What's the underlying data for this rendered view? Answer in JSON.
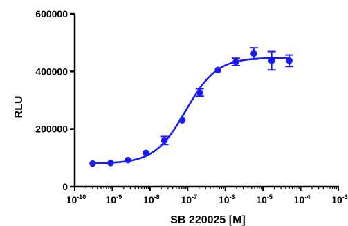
{
  "chart_data": {
    "type": "scatter",
    "title": "",
    "xlabel": "SB 220025 [M]",
    "ylabel": "RLU",
    "x_scale": "log",
    "xlim": [
      1e-10,
      0.001
    ],
    "ylim": [
      0,
      600000
    ],
    "x_ticks": [
      {
        "value": 1e-10,
        "base": "10",
        "exp": "-10"
      },
      {
        "value": 1e-09,
        "base": "10",
        "exp": "-9"
      },
      {
        "value": 1e-08,
        "base": "10",
        "exp": "-8"
      },
      {
        "value": 1e-07,
        "base": "10",
        "exp": "-7"
      },
      {
        "value": 1e-06,
        "base": "10",
        "exp": "-6"
      },
      {
        "value": 1e-05,
        "base": "10",
        "exp": "-5"
      },
      {
        "value": 0.0001,
        "base": "10",
        "exp": "-4"
      },
      {
        "value": 0.001,
        "base": "10",
        "exp": "-3"
      }
    ],
    "y_ticks": [
      {
        "value": 0,
        "label": "0"
      },
      {
        "value": 200000,
        "label": "200000"
      },
      {
        "value": 400000,
        "label": "400000"
      },
      {
        "value": 600000,
        "label": "600000"
      }
    ],
    "grid": false,
    "color": "#1a1aff",
    "series": [
      {
        "x": [
          3e-10,
          9e-10,
          2.6e-09,
          7.8e-09,
          2.4e-08,
          7.2e-08,
          2.1e-07,
          6.4e-07,
          1.9e-06,
          5.7e-06,
          1.7e-05,
          5e-05
        ],
        "y": [
          80000,
          82000,
          92000,
          117000,
          160000,
          230000,
          327000,
          405000,
          433000,
          462000,
          437000,
          437000
        ],
        "error": [
          0,
          0,
          0,
          0,
          14000,
          0,
          13000,
          0,
          13000,
          20000,
          32000,
          20000
        ]
      }
    ],
    "fit_curve": {
      "bottom": 80000,
      "top": 448000,
      "logEC50": -7.05,
      "hill": 1.05
    }
  }
}
